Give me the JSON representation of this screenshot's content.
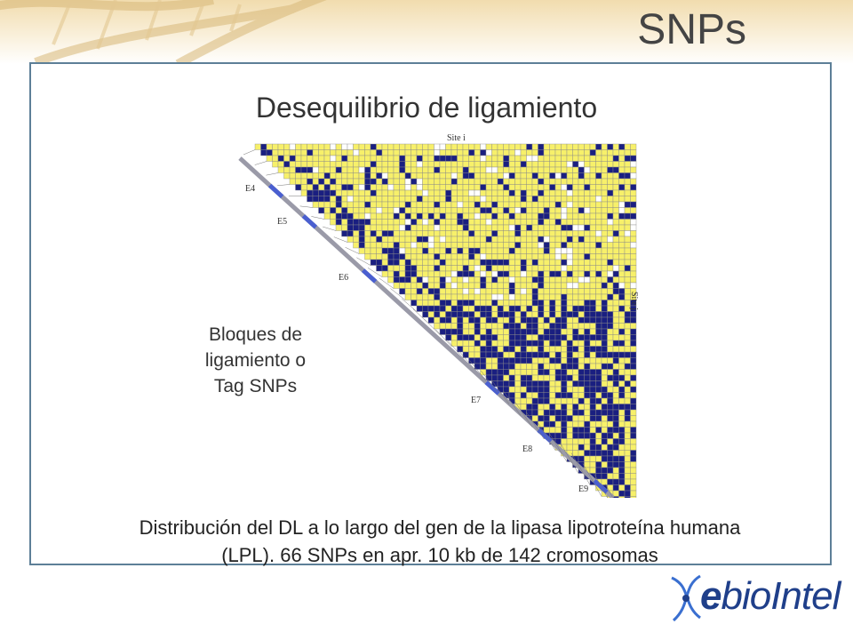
{
  "slide": {
    "title": "SNPs",
    "subtitle": "Desequilibrio de ligamiento",
    "blocks_label_lines": [
      "Bloques de",
      "ligamiento o",
      "Tag SNPs"
    ],
    "caption_lines": [
      "Distribución del DL a lo largo del gen de la lipasa lipotroteína humana",
      "(LPL). 66 SNPs en apr. 10 kb de 142 cromosomas"
    ]
  },
  "figure": {
    "site_i_label": "Site i",
    "site_j_label": "Site j",
    "exon_labels": [
      "E4",
      "E5",
      "E6",
      "E7",
      "E8",
      "E9"
    ],
    "colors": {
      "high": "#1a1f80",
      "mid": "#f7f06a",
      "low": "#ffffff",
      "grid": "#8a8a8a",
      "exon": "#4a5fd0"
    }
  },
  "logo": {
    "prefix": "e",
    "name": "bioIntel"
  },
  "colors": {
    "frame": "#5d7f97",
    "logo": "#1f3f8a"
  }
}
